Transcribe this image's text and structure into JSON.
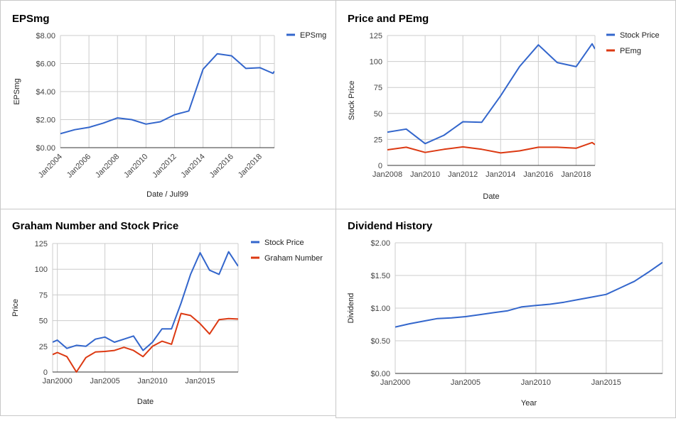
{
  "charts": [
    {
      "type": "line",
      "title": "EPSmg",
      "xlabel": "Date / Jul99",
      "ylabel": "EPSmg",
      "ylim": [
        0,
        8
      ],
      "yticks": [
        "$0.00",
        "$2.00",
        "$4.00",
        "$6.00",
        "$8.00"
      ],
      "xlim": [
        2004,
        2019
      ],
      "xticks": [
        "Jan2004",
        "Jan2006",
        "Jan2008",
        "Jan2010",
        "Jan2012",
        "Jan2014",
        "Jan2016",
        "Jan2018"
      ],
      "xtick_values": [
        2004,
        2006,
        2008,
        2010,
        2012,
        2014,
        2016,
        2018
      ],
      "x_tick_rotation": "diagonal",
      "legend_position": "top-right",
      "series": [
        {
          "name": "EPSmg",
          "color": "#3366cc",
          "x": [
            2004,
            2005,
            2006,
            2007,
            2008,
            2009,
            2010,
            2011,
            2012,
            2013,
            2014,
            2015,
            2016,
            2017,
            2018,
            2018.9,
            2019
          ],
          "y": [
            1.0,
            1.28,
            1.45,
            1.75,
            2.12,
            2.0,
            1.68,
            1.85,
            2.35,
            2.62,
            5.6,
            6.7,
            6.55,
            5.65,
            5.7,
            5.3,
            5.45
          ]
        }
      ]
    },
    {
      "type": "line",
      "title": "Price and PEmg",
      "xlabel": "Date",
      "ylabel": "Stock Price",
      "ylim": [
        0,
        125
      ],
      "yticks": [
        "0",
        "25",
        "50",
        "75",
        "100",
        "125"
      ],
      "xlim": [
        2008,
        2019
      ],
      "xticks": [
        "Jan2008",
        "Jan2010",
        "Jan2012",
        "Jan2014",
        "Jan2016",
        "Jan2018"
      ],
      "xtick_values": [
        2008,
        2010,
        2012,
        2014,
        2016,
        2018
      ],
      "legend_position": "top-right",
      "series": [
        {
          "name": "Stock Price",
          "color": "#3366cc",
          "x": [
            2008,
            2009,
            2010,
            2011,
            2012,
            2013,
            2014,
            2015,
            2016,
            2017,
            2018,
            2018.85,
            2019
          ],
          "y": [
            32,
            35,
            21,
            29,
            42,
            41.5,
            67,
            95,
            116,
            99,
            95,
            117,
            112
          ]
        },
        {
          "name": "PEmg",
          "color": "#dc3912",
          "x": [
            2008,
            2009,
            2010,
            2011,
            2012,
            2013,
            2014,
            2015,
            2016,
            2017,
            2018,
            2018.85,
            2019
          ],
          "y": [
            15,
            17.5,
            12.5,
            15.5,
            17.8,
            15.5,
            12,
            14,
            17.5,
            17.5,
            16.5,
            22,
            20
          ]
        }
      ]
    },
    {
      "type": "line",
      "title": "Graham Number and Stock Price",
      "xlabel": "Date",
      "ylabel": "Price",
      "ylim": [
        0,
        125
      ],
      "yticks": [
        "0",
        "25",
        "50",
        "75",
        "100",
        "125"
      ],
      "xlim": [
        1999.5,
        2019
      ],
      "xticks": [
        "Jan2000",
        "Jan2005",
        "Jan2010",
        "Jan2015"
      ],
      "xtick_values": [
        2000,
        2005,
        2010,
        2015
      ],
      "legend_position": "top-right",
      "series": [
        {
          "name": "Stock Price",
          "color": "#3366cc",
          "x": [
            1999.5,
            2000,
            2001,
            2002,
            2003,
            2004,
            2005,
            2006,
            2007,
            2008,
            2009,
            2010,
            2011,
            2012,
            2013,
            2014,
            2015,
            2016,
            2017,
            2018,
            2019
          ],
          "y": [
            29,
            31,
            23,
            26,
            25,
            32,
            34,
            29,
            32,
            35,
            21,
            29,
            42,
            42,
            67,
            95,
            116,
            99,
            95,
            117,
            103
          ]
        },
        {
          "name": "Graham Number",
          "color": "#dc3912",
          "x": [
            1999.5,
            2000,
            2001,
            2002,
            2003,
            2004,
            2005,
            2006,
            2007,
            2008,
            2009,
            2010,
            2011,
            2012,
            2013,
            2014,
            2015,
            2016,
            2017,
            2018,
            2019
          ],
          "y": [
            17,
            19,
            15,
            0,
            14,
            19.5,
            20,
            21,
            24,
            21,
            15,
            25,
            30,
            27,
            57,
            55,
            47,
            37,
            51,
            52,
            51.5
          ]
        }
      ]
    },
    {
      "type": "line",
      "title": "Dividend History",
      "xlabel": "Year",
      "ylabel": "Dividend",
      "ylim": [
        0,
        2
      ],
      "yticks": [
        "$0.00",
        "$0.50",
        "$1.00",
        "$1.50",
        "$2.00"
      ],
      "xlim": [
        2000,
        2019
      ],
      "xticks": [
        "Jan2000",
        "Jan2005",
        "Jan2010",
        "Jan2015"
      ],
      "xtick_values": [
        2000,
        2005,
        2010,
        2015
      ],
      "legend_position": "none",
      "series": [
        {
          "name": "",
          "color": "#3366cc",
          "x": [
            2000,
            2001,
            2002,
            2003,
            2004,
            2005,
            2006,
            2007,
            2008,
            2009,
            2010,
            2011,
            2012,
            2013,
            2014,
            2015,
            2016,
            2017,
            2018,
            2019
          ],
          "y": [
            0.71,
            0.76,
            0.8,
            0.84,
            0.85,
            0.87,
            0.9,
            0.93,
            0.96,
            1.02,
            1.04,
            1.06,
            1.09,
            1.13,
            1.17,
            1.21,
            1.31,
            1.41,
            1.55,
            1.7
          ]
        }
      ]
    }
  ]
}
